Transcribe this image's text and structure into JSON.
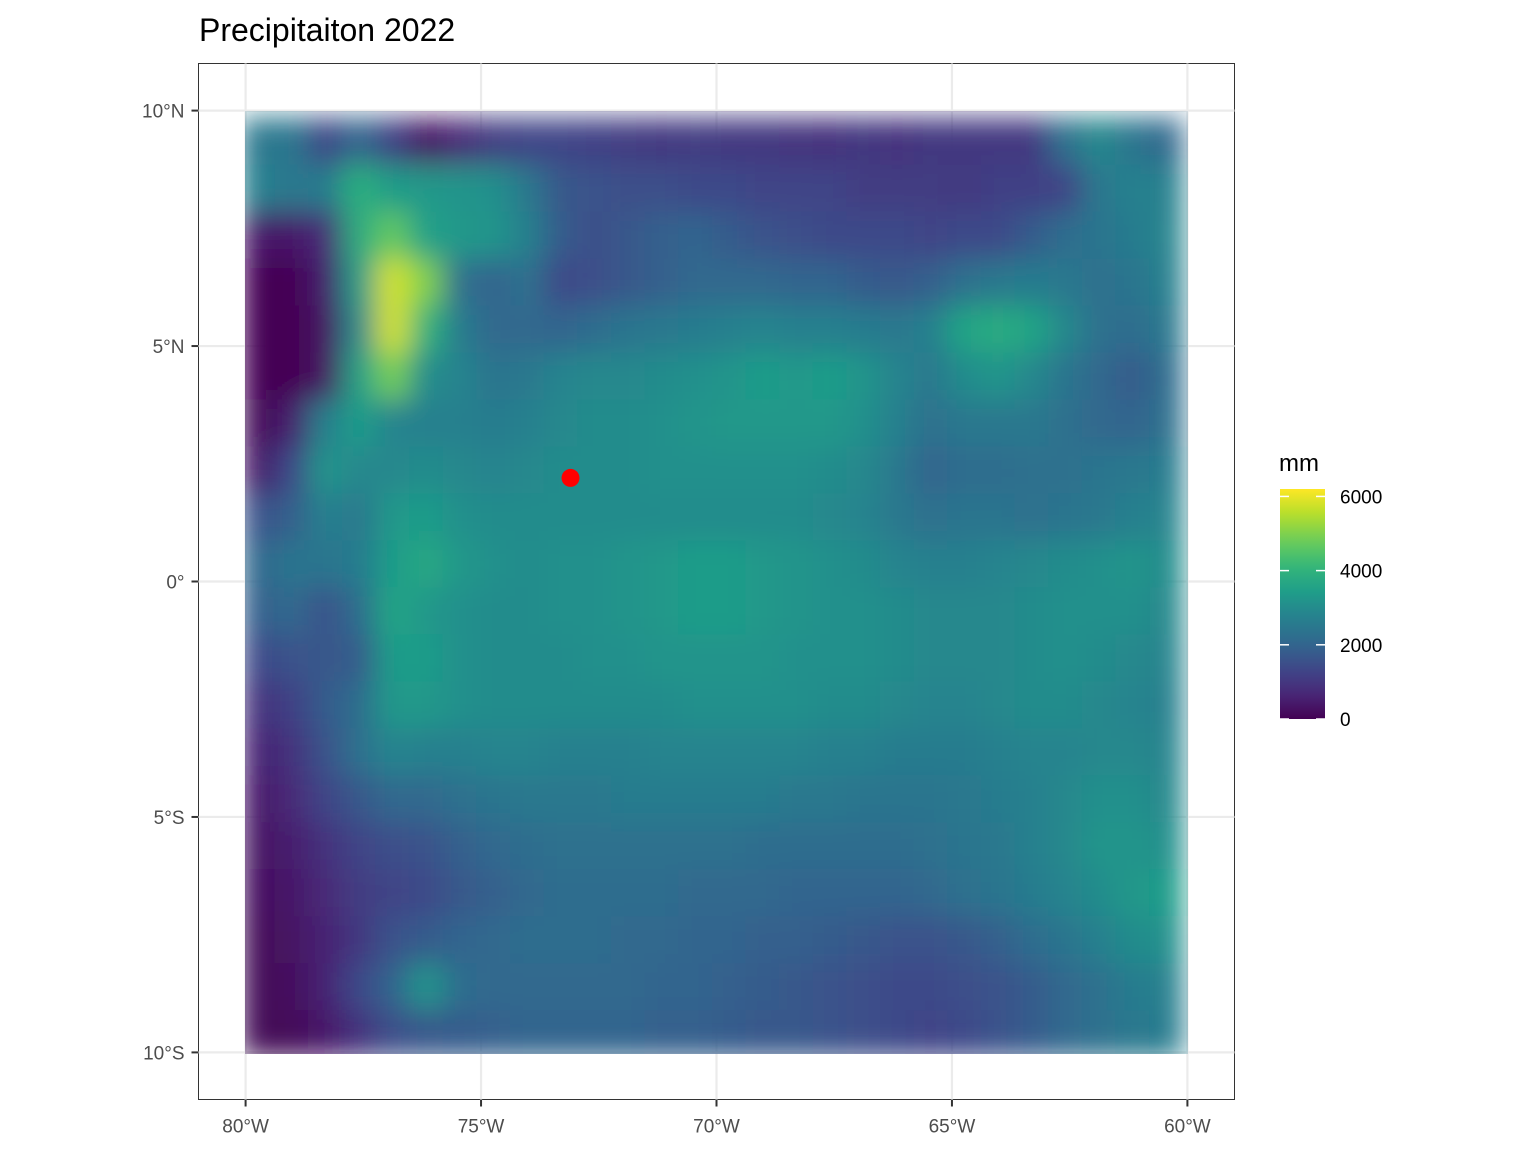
{
  "chart_data": {
    "type": "heatmap",
    "title": "Precipitaiton 2022",
    "xlabel": "",
    "ylabel": "",
    "x_ticks": [
      {
        "value": -80,
        "label": "80°W"
      },
      {
        "value": -75,
        "label": "75°W"
      },
      {
        "value": -70,
        "label": "70°W"
      },
      {
        "value": -65,
        "label": "65°W"
      },
      {
        "value": -60,
        "label": "60°W"
      }
    ],
    "y_ticks": [
      {
        "value": 10,
        "label": "10°N"
      },
      {
        "value": 5,
        "label": "5°N"
      },
      {
        "value": 0,
        "label": "0°"
      },
      {
        "value": -5,
        "label": "5°S"
      },
      {
        "value": -10,
        "label": "10°S"
      }
    ],
    "xlim": [
      -81,
      -59
    ],
    "ylim": [
      -11,
      11
    ],
    "raster_extent": {
      "x": [
        -80.1,
        -60.1
      ],
      "y": [
        -10.1,
        9.85
      ]
    },
    "grid": true,
    "colorbar": {
      "title": "mm",
      "scale": "viridis",
      "limits": [
        0,
        6200
      ],
      "ticks": [
        {
          "value": 0,
          "label": "0"
        },
        {
          "value": 2000,
          "label": "2000"
        },
        {
          "value": 4000,
          "label": "4000"
        },
        {
          "value": 6000,
          "label": "6000"
        }
      ],
      "position": "right"
    },
    "grid_values_mm": [
      [
        2500,
        2450,
        1300,
        2100,
        1200,
        300,
        700,
        1100,
        1300,
        1300,
        1200,
        1100,
        1000,
        1100,
        1000,
        1000,
        950,
        900,
        1000,
        900,
        1000,
        1000,
        1000,
        1000,
        2300,
        2900,
        2400,
        2100
      ],
      [
        2700,
        2500,
        2600,
        3900,
        3400,
        3300,
        3200,
        3100,
        2500,
        1700,
        1600,
        1500,
        1500,
        1400,
        1400,
        1300,
        1300,
        1300,
        1100,
        1100,
        1100,
        1000,
        1200,
        1200,
        1300,
        2500,
        2700,
        2700
      ],
      [
        400,
        400,
        700,
        3800,
        4700,
        3500,
        3300,
        3200,
        2700,
        1800,
        1500,
        1700,
        1900,
        2000,
        1800,
        1600,
        1500,
        1400,
        1400,
        1400,
        1300,
        1400,
        1400,
        1800,
        2200,
        2400,
        2600,
        2800
      ],
      [
        0,
        0,
        500,
        3400,
        5800,
        5000,
        2300,
        2000,
        2300,
        1400,
        1500,
        1700,
        1900,
        2100,
        2100,
        2100,
        2000,
        2000,
        1800,
        1700,
        1900,
        2300,
        2500,
        2600,
        2500,
        2300,
        2400,
        2700
      ],
      [
        0,
        0,
        300,
        3000,
        5800,
        4000,
        2600,
        2100,
        2100,
        2000,
        2200,
        2400,
        2500,
        2600,
        2700,
        2800,
        2700,
        2700,
        2600,
        2500,
        2700,
        3600,
        3800,
        3600,
        2900,
        2300,
        2200,
        2500
      ],
      [
        0,
        0,
        300,
        3500,
        4900,
        3000,
        2800,
        2400,
        2500,
        2800,
        2900,
        2900,
        3000,
        3100,
        3200,
        3400,
        3300,
        3400,
        3200,
        2800,
        2500,
        3000,
        3200,
        2900,
        2400,
        2100,
        1800,
        2200
      ],
      [
        100,
        500,
        2700,
        3400,
        2800,
        2700,
        2700,
        2600,
        2700,
        2900,
        3000,
        3000,
        3100,
        3200,
        3300,
        3300,
        3300,
        3300,
        3100,
        2700,
        2300,
        2500,
        2500,
        2500,
        2300,
        2100,
        2000,
        2300
      ],
      [
        400,
        1400,
        3200,
        2900,
        2900,
        3000,
        2900,
        2800,
        2900,
        3000,
        3000,
        3000,
        3100,
        3100,
        3100,
        3100,
        3100,
        3000,
        2900,
        2500,
        2000,
        2200,
        2200,
        2300,
        2300,
        2400,
        2500,
        2600
      ],
      [
        1600,
        1900,
        2700,
        2500,
        3300,
        3400,
        3100,
        3000,
        3000,
        3000,
        3000,
        3000,
        3000,
        3000,
        3000,
        3000,
        3000,
        2900,
        2800,
        2500,
        2300,
        2400,
        2400,
        2300,
        2400,
        2500,
        2700,
        2800
      ],
      [
        2100,
        2400,
        2400,
        2600,
        3400,
        3700,
        3300,
        3100,
        3000,
        3100,
        3100,
        3200,
        3300,
        3400,
        3400,
        3300,
        3200,
        3100,
        3000,
        2800,
        2700,
        2700,
        2800,
        2900,
        3000,
        3100,
        3200,
        3000
      ],
      [
        1900,
        2100,
        1600,
        2200,
        3600,
        3300,
        3100,
        3000,
        3000,
        3100,
        3100,
        3200,
        3300,
        3400,
        3400,
        3300,
        3200,
        3100,
        3100,
        3000,
        2900,
        2900,
        2900,
        3000,
        3100,
        3100,
        3100,
        2900
      ],
      [
        1400,
        1600,
        1700,
        1800,
        3400,
        3400,
        3100,
        3000,
        3000,
        3000,
        3100,
        3100,
        3200,
        3200,
        3200,
        3200,
        3100,
        3100,
        3100,
        3000,
        2900,
        2900,
        2900,
        3000,
        3100,
        3000,
        2900,
        2800
      ],
      [
        900,
        1200,
        1800,
        2200,
        3300,
        3300,
        3100,
        3000,
        3000,
        3000,
        3000,
        3000,
        3000,
        3100,
        3100,
        3100,
        3100,
        3000,
        3000,
        2900,
        2800,
        2800,
        2900,
        3000,
        3000,
        2900,
        2800,
        2700
      ],
      [
        600,
        900,
        1600,
        2300,
        2800,
        2700,
        2700,
        2800,
        2800,
        2700,
        2700,
        2700,
        2800,
        2800,
        2800,
        2800,
        2800,
        2700,
        2700,
        2600,
        2600,
        2600,
        2700,
        2800,
        2800,
        2900,
        2900,
        2800
      ],
      [
        400,
        700,
        1300,
        1700,
        2100,
        2100,
        2300,
        2400,
        2500,
        2500,
        2500,
        2600,
        2600,
        2600,
        2600,
        2600,
        2500,
        2500,
        2400,
        2400,
        2400,
        2500,
        2600,
        2700,
        2900,
        3100,
        3100,
        2900
      ],
      [
        300,
        500,
        900,
        1300,
        1500,
        1600,
        1900,
        2100,
        2200,
        2300,
        2300,
        2300,
        2300,
        2300,
        2300,
        2200,
        2200,
        2200,
        2200,
        2200,
        2300,
        2400,
        2500,
        2700,
        2900,
        3200,
        3200,
        3100
      ],
      [
        200,
        400,
        700,
        1100,
        1300,
        1400,
        1700,
        1900,
        2100,
        2200,
        2200,
        2200,
        2200,
        2100,
        2100,
        2100,
        2000,
        2000,
        2000,
        2000,
        2100,
        2300,
        2400,
        2600,
        2800,
        3000,
        3300,
        3400
      ],
      [
        100,
        300,
        600,
        1000,
        1600,
        1800,
        2000,
        2100,
        2200,
        2200,
        2200,
        2100,
        2100,
        2000,
        2000,
        1900,
        1900,
        1800,
        1700,
        1600,
        1600,
        1700,
        1900,
        2200,
        2400,
        2700,
        3000,
        3100
      ],
      [
        100,
        200,
        600,
        1400,
        2000,
        3200,
        2200,
        2100,
        2100,
        2100,
        2100,
        2100,
        2000,
        2000,
        1900,
        1800,
        1700,
        1600,
        1500,
        1400,
        1400,
        1500,
        1600,
        1800,
        2100,
        2300,
        2600,
        2700
      ],
      [
        100,
        100,
        400,
        900,
        1500,
        1700,
        1800,
        1900,
        2000,
        2000,
        2000,
        2000,
        1900,
        1900,
        1800,
        1700,
        1700,
        1600,
        1500,
        1400,
        1300,
        1400,
        1600,
        1800,
        2100,
        2300,
        2500,
        2600
      ]
    ],
    "annotations": [
      {
        "type": "point",
        "color": "#ff0000",
        "lon": -73.1,
        "lat": 2.2
      }
    ]
  }
}
